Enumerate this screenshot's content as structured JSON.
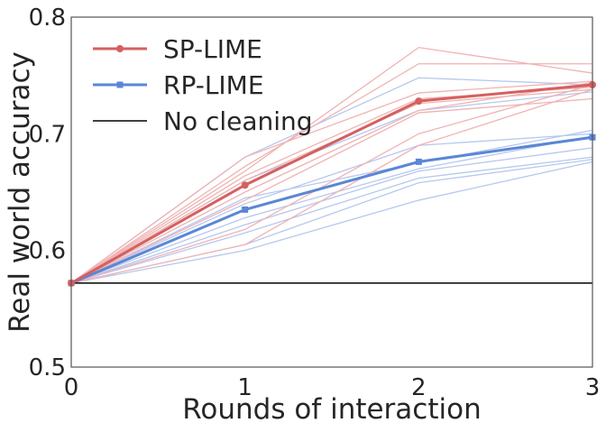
{
  "chart_data": {
    "type": "line",
    "title": "",
    "xlabel": "Rounds of interaction",
    "ylabel": "Real world accuracy",
    "xlim": [
      0,
      3
    ],
    "ylim": [
      0.5,
      0.8
    ],
    "xticks": [
      0,
      1,
      2,
      3
    ],
    "xtick_labels": [
      "0",
      "1",
      "2",
      "3"
    ],
    "yticks": [
      0.5,
      0.6,
      0.7,
      0.8
    ],
    "ytick_labels": [
      "0.5",
      "0.6",
      "0.7",
      "0.8"
    ],
    "grid": false,
    "legend_position": "top-left",
    "colors": {
      "sp": "#d65f5f",
      "sp_faint": "#efb3b3",
      "rp": "#5a86d6",
      "rp_faint": "#b5c8ee",
      "baseline": "#000000",
      "axes": "#555555"
    },
    "x": [
      0,
      1,
      2,
      3
    ],
    "series": [
      {
        "name": "SP-LIME",
        "values": [
          0.572,
          0.656,
          0.728,
          0.742
        ]
      },
      {
        "name": "RP-LIME",
        "values": [
          0.572,
          0.635,
          0.676,
          0.697
        ]
      },
      {
        "name": "No cleaning",
        "values": [
          0.572,
          0.572,
          0.572,
          0.572
        ]
      }
    ],
    "faint_runs": {
      "sp": [
        [
          0.572,
          0.668,
          0.774,
          0.752
        ],
        [
          0.572,
          0.672,
          0.76,
          0.76
        ],
        [
          0.572,
          0.68,
          0.735,
          0.745
        ],
        [
          0.572,
          0.664,
          0.73,
          0.74
        ],
        [
          0.572,
          0.66,
          0.726,
          0.738
        ],
        [
          0.572,
          0.65,
          0.72,
          0.744
        ],
        [
          0.572,
          0.643,
          0.718,
          0.73
        ],
        [
          0.572,
          0.618,
          0.7,
          0.742
        ],
        [
          0.572,
          0.605,
          0.69,
          0.738
        ]
      ],
      "rp": [
        [
          0.572,
          0.68,
          0.748,
          0.742
        ],
        [
          0.572,
          0.66,
          0.72,
          0.736
        ],
        [
          0.572,
          0.64,
          0.69,
          0.7
        ],
        [
          0.572,
          0.645,
          0.675,
          0.703
        ],
        [
          0.572,
          0.628,
          0.67,
          0.698
        ],
        [
          0.572,
          0.622,
          0.668,
          0.688
        ],
        [
          0.572,
          0.615,
          0.662,
          0.68
        ],
        [
          0.572,
          0.605,
          0.658,
          0.678
        ],
        [
          0.572,
          0.6,
          0.643,
          0.676
        ]
      ]
    }
  }
}
